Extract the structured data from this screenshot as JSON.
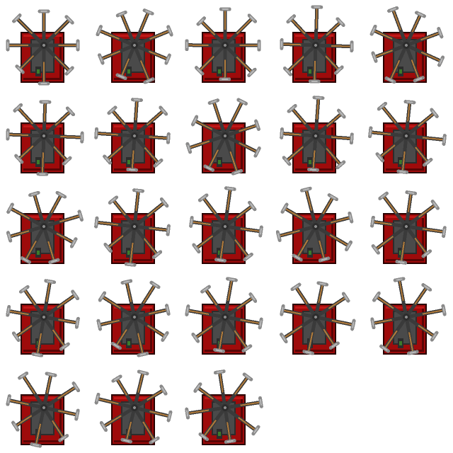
{
  "sprite_sheet": {
    "columns": 5,
    "rows": 5,
    "frame_count": 23,
    "background": "#ffffff",
    "colors": {
      "panel_red": "#9e0b0b",
      "panel_red_dark": "#5a0505",
      "panel_red_light": "#c01818",
      "panel_outline": "#2a0000",
      "body_gray": "#4a4a4a",
      "body_gray_dark": "#2c2c2c",
      "arm_dark": "#3a3a3a",
      "arm_wood": "#b07a3a",
      "head_gray": "#8a8a8a",
      "head_gray_light": "#b8b8b8",
      "light_green": "#3c7a2a"
    },
    "icon": "spinning-hammer-trap-sprite",
    "arm_count": 8
  }
}
